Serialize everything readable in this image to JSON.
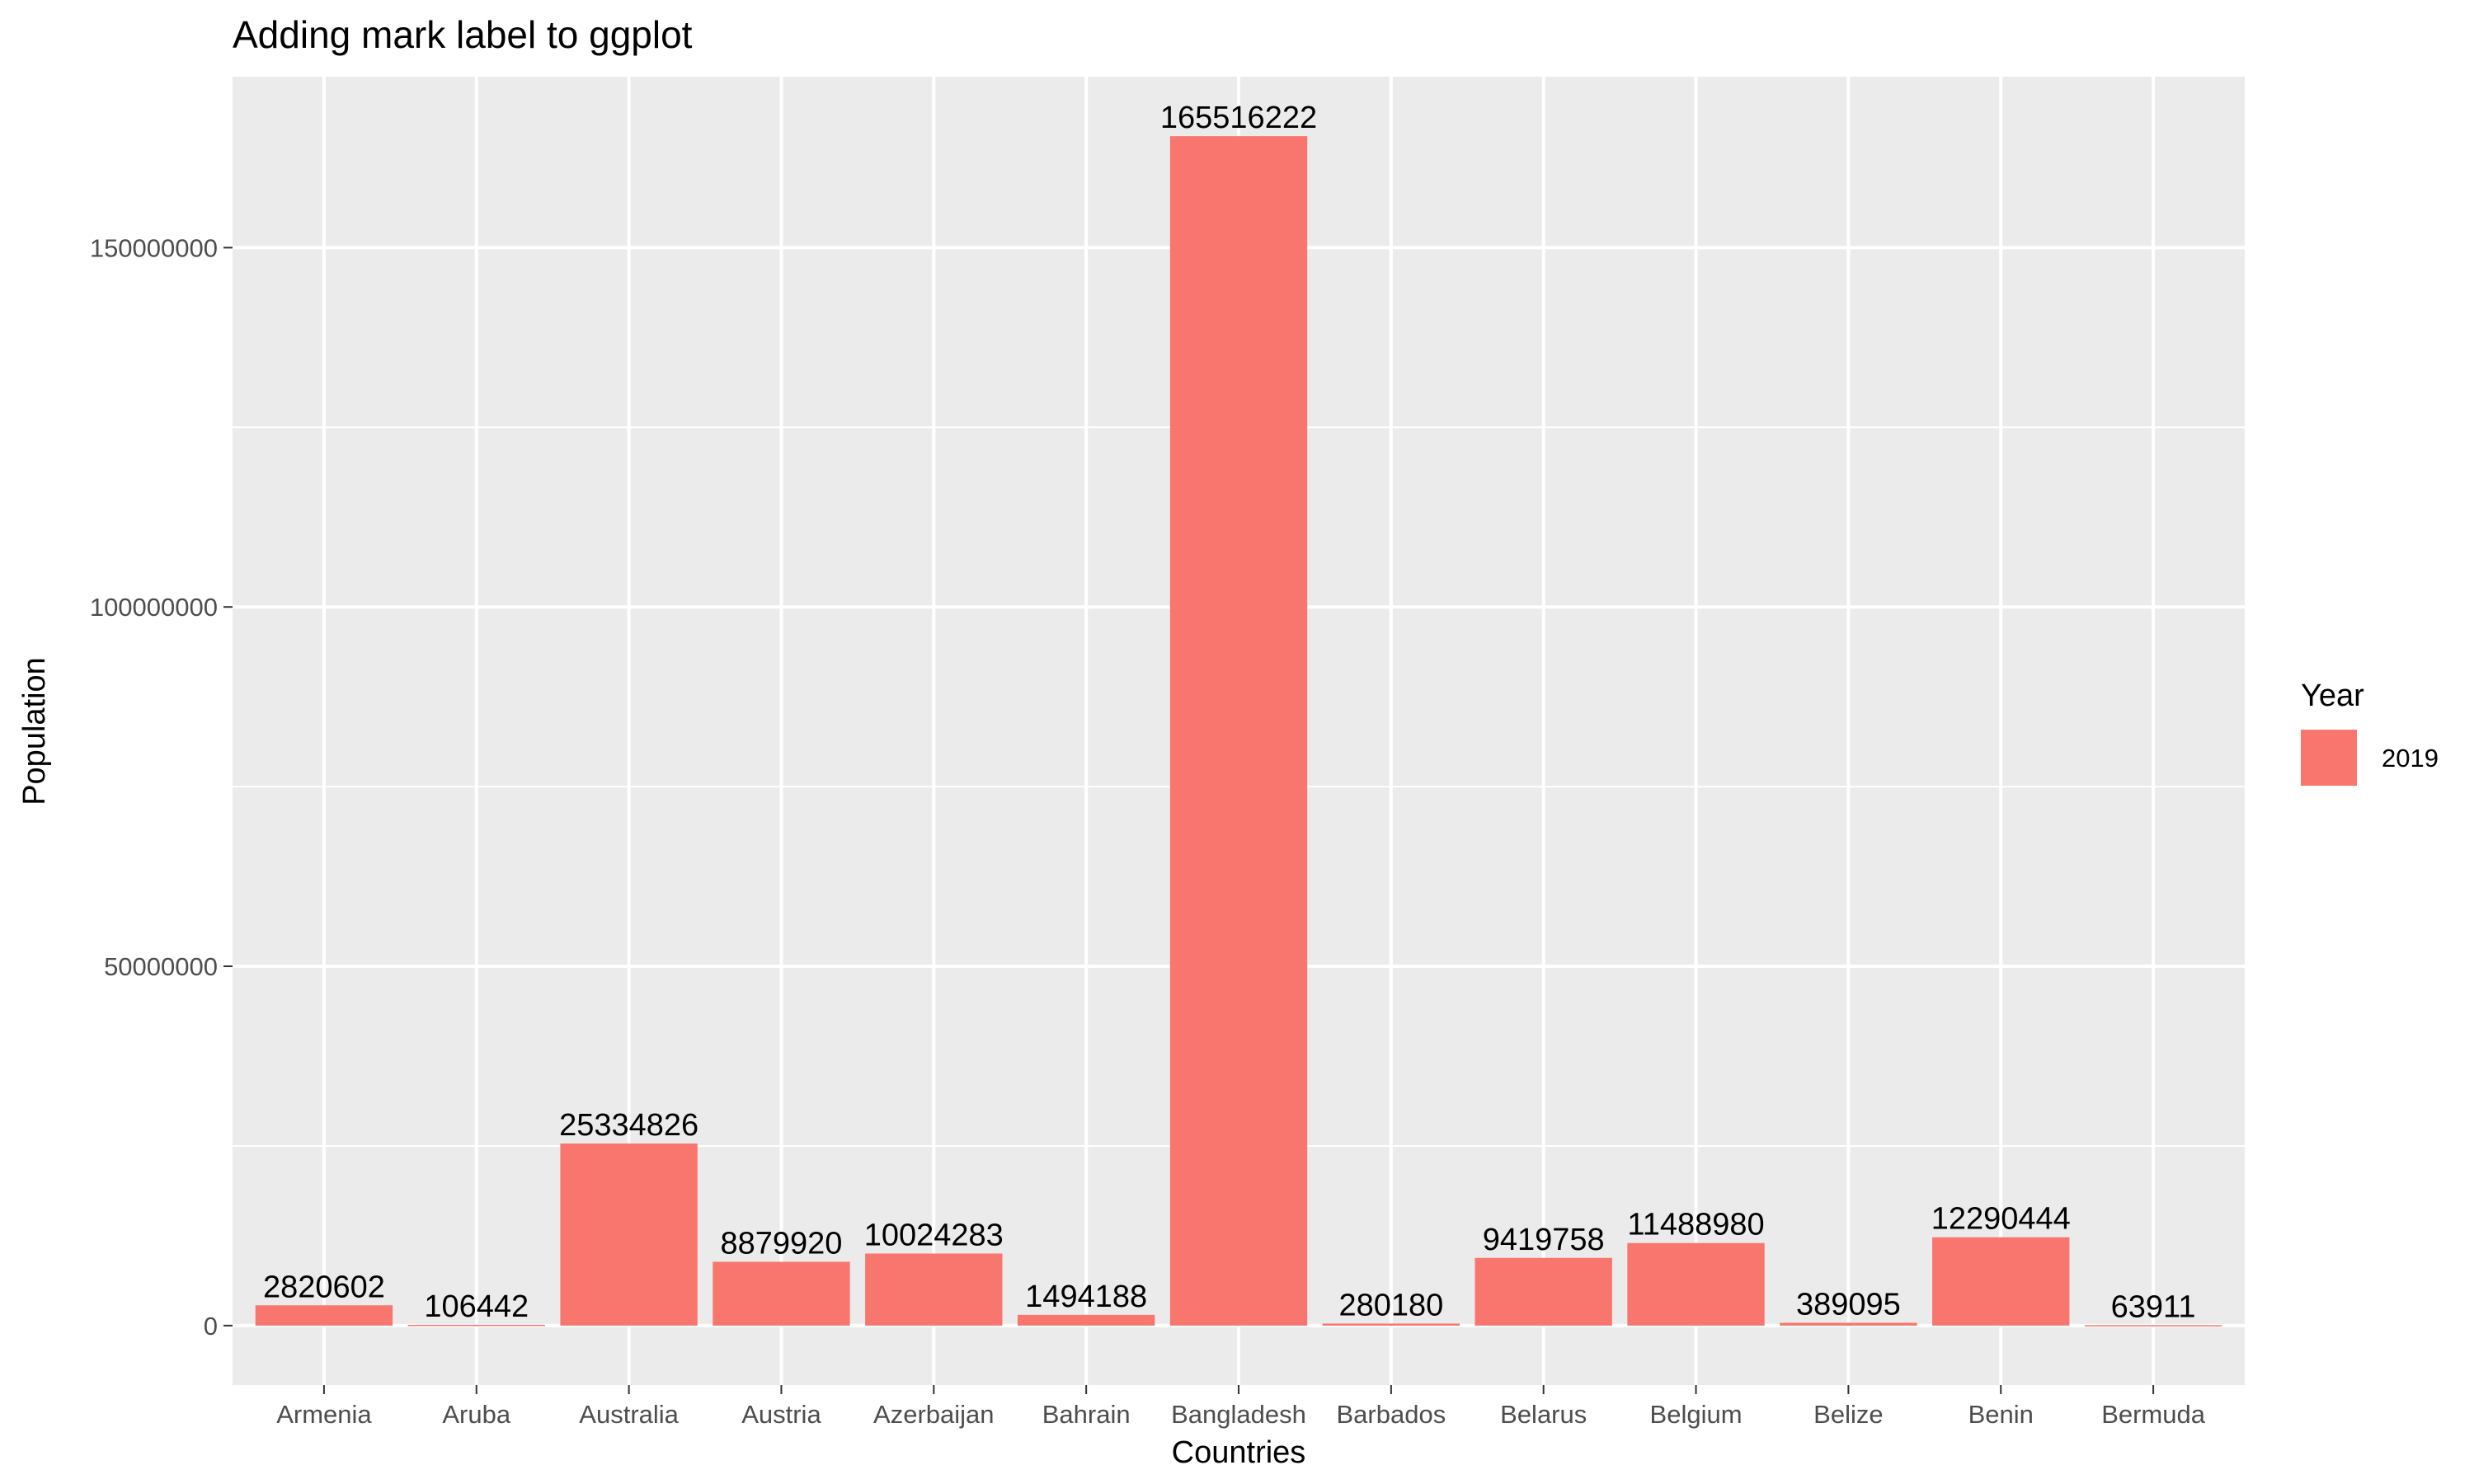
{
  "chart_data": {
    "type": "bar",
    "title": "Adding mark label to ggplot",
    "xlabel": "Countries",
    "ylabel": "Population",
    "categories": [
      "Armenia",
      "Aruba",
      "Australia",
      "Austria",
      "Azerbaijan",
      "Bahrain",
      "Bangladesh",
      "Barbados",
      "Belarus",
      "Belgium",
      "Belize",
      "Benin",
      "Bermuda"
    ],
    "series": [
      {
        "name": "2019",
        "color": "#F8766D",
        "values": [
          2820602,
          106442,
          25334826,
          8879920,
          10024283,
          1494188,
          165516222,
          280180,
          9419758,
          11488980,
          389095,
          12290444,
          63911
        ]
      }
    ],
    "data_labels": [
      "2820602",
      "106442",
      "25334826",
      "8879920",
      "10024283",
      "1494188",
      "165516222",
      "280180",
      "9419758",
      "11488980",
      "389095",
      "12290444",
      "63911"
    ],
    "yticks": [
      0,
      50000000,
      100000000,
      150000000
    ],
    "ytick_labels": [
      "0",
      "50000000",
      "100000000",
      "150000000"
    ],
    "ylim": [
      -8275811,
      173792033
    ],
    "grid": true,
    "legend": {
      "title": "Year",
      "position": "right",
      "entries": [
        "2019"
      ]
    },
    "panel_background": "#EBEBEB",
    "grid_color": "#FFFFFF"
  }
}
